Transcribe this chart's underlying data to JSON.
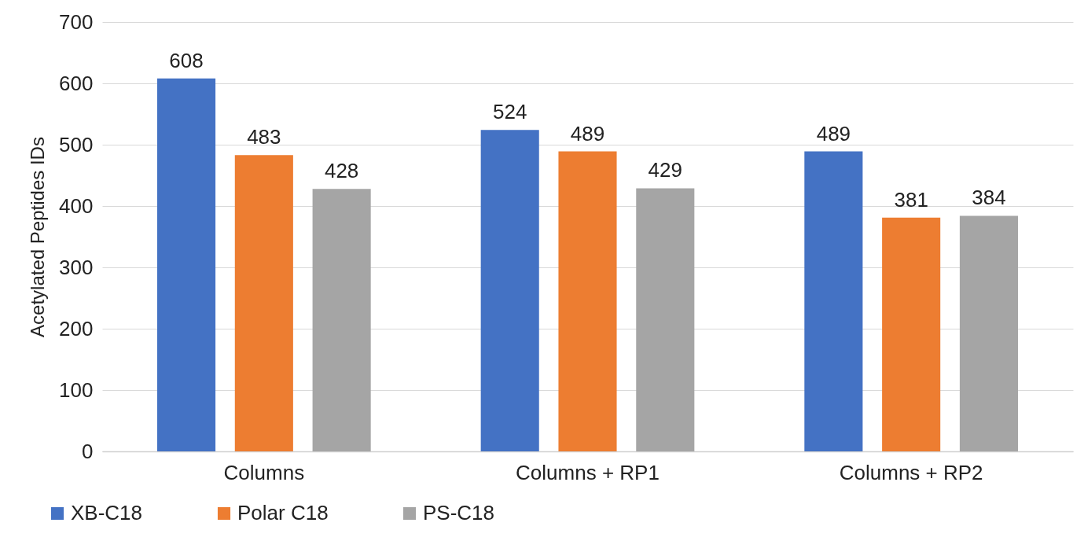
{
  "chart_data": {
    "type": "bar",
    "ylabel": "Acetylated Peptides IDs",
    "categories": [
      "Columns",
      "Columns + RP1",
      "Columns + RP2"
    ],
    "series": [
      {
        "name": "XB-C18",
        "color": "#4472c4",
        "values": [
          608,
          524,
          489
        ]
      },
      {
        "name": "Polar C18",
        "color": "#ed7d31",
        "values": [
          483,
          489,
          381
        ]
      },
      {
        "name": "PS-C18",
        "color": "#a5a5a5",
        "values": [
          428,
          429,
          384
        ]
      }
    ],
    "ylim": [
      0,
      700
    ],
    "yticks": [
      0,
      100,
      200,
      300,
      400,
      500,
      600,
      700
    ],
    "grid": "y",
    "legend": "bottom",
    "data_labels": true
  }
}
